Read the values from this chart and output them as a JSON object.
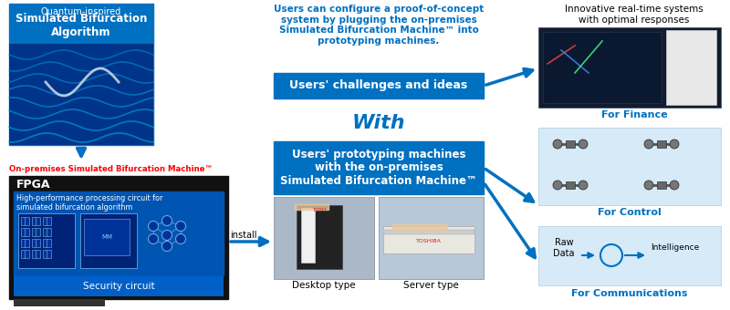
{
  "bg_color": "#ffffff",
  "blue_dark": "#0070c0",
  "blue_light": "#d6eaf8",
  "red_color": "#ff0000",
  "black_color": "#000000",
  "fpga_bg": "#111111",
  "fpga_inner": "#0055b3",
  "fpga_security": "#0060c8",
  "top_left_label": "Quantum-inspired",
  "top_left_bold": "Simulated Bifurcation\nAlgorithm",
  "onprem_label": "On-premises Simulated Bifurcation Machine™",
  "fpga_label": "FPGA",
  "fpga_desc1": "High-performance processing circuit for",
  "fpga_desc2": "simulated bifurcation algorithm",
  "security_label": "Security circuit",
  "install_label": "install",
  "center_top_text": "Users can configure a proof-of-concept\nsystem by plugging the on-premises\nSimulated Bifurcation Machine™ into\nprototyping machines.",
  "challenges_label": "Users' challenges and ideas",
  "with_label": "With",
  "proto_box_text": "Users' prototyping machines\nwith the on-premises\nSimulated Bifurcation Machine™",
  "desktop_label": "Desktop type",
  "server_label": "Server type",
  "right_top_text": "Innovative real-time systems\nwith optimal responses",
  "finance_label": "For Finance",
  "control_label": "For Control",
  "comms_label": "For Communications",
  "raw_data": "Raw\nData",
  "intelligence": "Intelligence"
}
